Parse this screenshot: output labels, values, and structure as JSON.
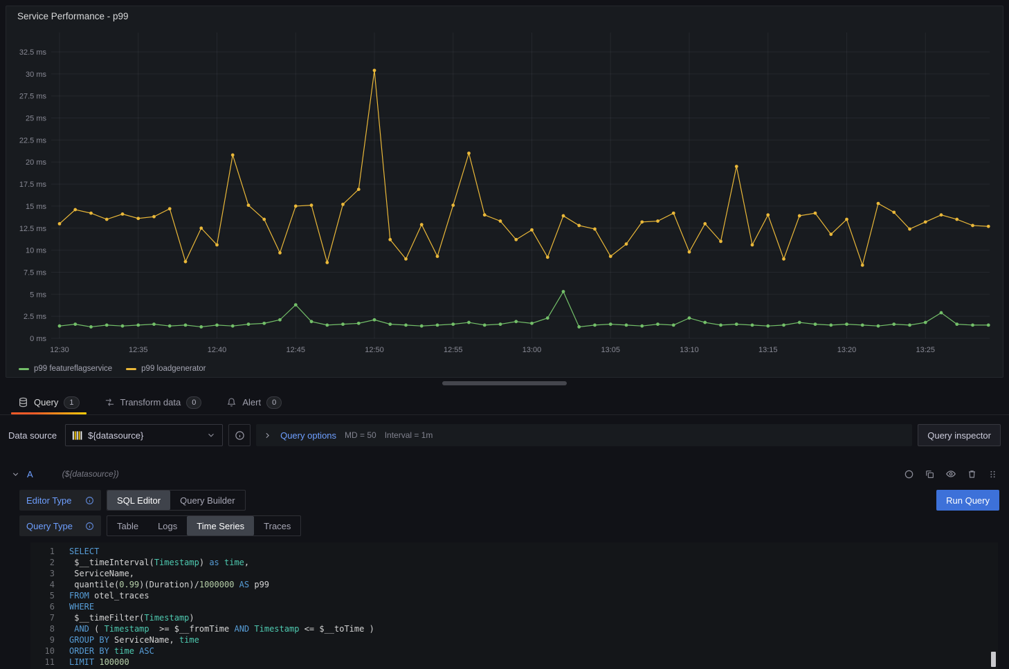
{
  "panel": {
    "title": "Service Performance - p99",
    "legend": [
      {
        "label": "p99 featureflagservice",
        "color": "#73bf69"
      },
      {
        "label": "p99 loadgenerator",
        "color": "#eab839"
      }
    ]
  },
  "chart_data": {
    "type": "line",
    "title": "Service Performance - p99",
    "grid": true,
    "legend_position": "bottom-left",
    "x_start": "12:30",
    "x_step_minutes": 1,
    "x_tick_labels": [
      "12:30",
      "12:35",
      "12:40",
      "12:45",
      "12:50",
      "12:55",
      "13:00",
      "13:05",
      "13:10",
      "13:15",
      "13:20",
      "13:25"
    ],
    "y_tick_labels": [
      "0 ms",
      "2.5 ms",
      "5 ms",
      "7.5 ms",
      "10 ms",
      "12.5 ms",
      "15 ms",
      "17.5 ms",
      "20 ms",
      "22.5 ms",
      "25 ms",
      "27.5 ms",
      "30 ms",
      "32.5 ms"
    ],
    "ylim": [
      0,
      32.5
    ],
    "y_unit": "ms",
    "series": [
      {
        "name": "p99 featureflagservice",
        "color": "#73bf69",
        "values": [
          1.4,
          1.6,
          1.3,
          1.5,
          1.4,
          1.5,
          1.6,
          1.4,
          1.5,
          1.3,
          1.5,
          1.4,
          1.6,
          1.7,
          2.1,
          3.8,
          1.9,
          1.5,
          1.6,
          1.7,
          2.1,
          1.6,
          1.5,
          1.4,
          1.5,
          1.6,
          1.8,
          1.5,
          1.6,
          1.9,
          1.7,
          2.3,
          5.3,
          1.3,
          1.5,
          1.6,
          1.5,
          1.4,
          1.6,
          1.5,
          2.3,
          1.8,
          1.5,
          1.6,
          1.5,
          1.4,
          1.5,
          1.8,
          1.6,
          1.5,
          1.6,
          1.5,
          1.4,
          1.6,
          1.5,
          1.8,
          2.9,
          1.6,
          1.5,
          1.5
        ]
      },
      {
        "name": "p99 loadgenerator",
        "color": "#eab839",
        "values": [
          13.0,
          14.6,
          14.2,
          13.5,
          14.1,
          13.6,
          13.8,
          14.7,
          8.7,
          12.5,
          10.6,
          20.8,
          15.1,
          13.5,
          9.7,
          15.0,
          15.1,
          8.6,
          15.2,
          16.9,
          30.4,
          11.2,
          9.0,
          12.9,
          9.3,
          15.1,
          21.0,
          14.0,
          13.3,
          11.2,
          12.3,
          9.2,
          13.9,
          12.8,
          12.4,
          9.3,
          10.7,
          13.2,
          13.3,
          14.2,
          9.8,
          13.0,
          11.0,
          19.5,
          10.6,
          14.0,
          9.0,
          13.9,
          14.2,
          11.8,
          13.5,
          8.3,
          15.3,
          14.3,
          12.4,
          13.2,
          14.0,
          13.5,
          12.8,
          12.7
        ]
      }
    ]
  },
  "tabs": [
    {
      "label": "Query",
      "badge": "1",
      "active": true,
      "icon": "database-icon"
    },
    {
      "label": "Transform data",
      "badge": "0",
      "active": false,
      "icon": "transform-icon"
    },
    {
      "label": "Alert",
      "badge": "0",
      "active": false,
      "icon": "bell-icon"
    }
  ],
  "toolbar": {
    "datasource_label": "Data source",
    "datasource_value": "${datasource}",
    "datasource_icon": "clickhouse-logo-icon",
    "query_options_label": "Query options",
    "query_options_md": "MD = 50",
    "query_options_interval": "Interval = 1m",
    "query_inspector_label": "Query inspector"
  },
  "query": {
    "ref_id": "A",
    "datasource_hint": "(${datasource})",
    "editor_type_label": "Editor Type",
    "editor_type_options": [
      "SQL Editor",
      "Query Builder"
    ],
    "editor_type_selected": "SQL Editor",
    "query_type_label": "Query Type",
    "query_type_options": [
      "Table",
      "Logs",
      "Time Series",
      "Traces"
    ],
    "query_type_selected": "Time Series",
    "run_query_label": "Run Query",
    "sql_lines": [
      [
        {
          "t": "k",
          "s": "SELECT"
        }
      ],
      [
        {
          "t": "p",
          "s": " $__timeInterval("
        },
        {
          "t": "i",
          "s": "Timestamp"
        },
        {
          "t": "p",
          "s": ") "
        },
        {
          "t": "k",
          "s": "as"
        },
        {
          "t": "p",
          "s": " "
        },
        {
          "t": "i",
          "s": "time"
        },
        {
          "t": "p",
          "s": ","
        }
      ],
      [
        {
          "t": "p",
          "s": " ServiceName,"
        }
      ],
      [
        {
          "t": "p",
          "s": " quantile("
        },
        {
          "t": "n",
          "s": "0.99"
        },
        {
          "t": "p",
          "s": ")(Duration)/"
        },
        {
          "t": "n",
          "s": "1000000"
        },
        {
          "t": "p",
          "s": " "
        },
        {
          "t": "k",
          "s": "AS"
        },
        {
          "t": "p",
          "s": " p99"
        }
      ],
      [
        {
          "t": "k",
          "s": "FROM"
        },
        {
          "t": "p",
          "s": " otel_traces"
        }
      ],
      [
        {
          "t": "k",
          "s": "WHERE"
        }
      ],
      [
        {
          "t": "p",
          "s": " $__timeFilter("
        },
        {
          "t": "i",
          "s": "Timestamp"
        },
        {
          "t": "p",
          "s": ")"
        }
      ],
      [
        {
          "t": "p",
          "s": " "
        },
        {
          "t": "k",
          "s": "AND"
        },
        {
          "t": "p",
          "s": " ( "
        },
        {
          "t": "i",
          "s": "Timestamp"
        },
        {
          "t": "p",
          "s": "  >= $__fromTime "
        },
        {
          "t": "k",
          "s": "AND"
        },
        {
          "t": "p",
          "s": " "
        },
        {
          "t": "i",
          "s": "Timestamp"
        },
        {
          "t": "p",
          "s": " <= $__toTime )"
        }
      ],
      [
        {
          "t": "k",
          "s": "GROUP BY"
        },
        {
          "t": "p",
          "s": " ServiceName, "
        },
        {
          "t": "i",
          "s": "time"
        }
      ],
      [
        {
          "t": "k",
          "s": "ORDER BY"
        },
        {
          "t": "p",
          "s": " "
        },
        {
          "t": "i",
          "s": "time"
        },
        {
          "t": "p",
          "s": " "
        },
        {
          "t": "k",
          "s": "ASC"
        }
      ],
      [
        {
          "t": "k",
          "s": "LIMIT"
        },
        {
          "t": "p",
          "s": " "
        },
        {
          "t": "n",
          "s": "100000"
        }
      ]
    ]
  },
  "colors": {
    "page_background": "#111217",
    "panel_background": "#181b1f",
    "accent_orange": "#ff780a",
    "primary_blue": "#3d71d9",
    "link_blue": "#6e9fff",
    "series_green": "#73bf69",
    "series_yellow": "#eab839"
  }
}
